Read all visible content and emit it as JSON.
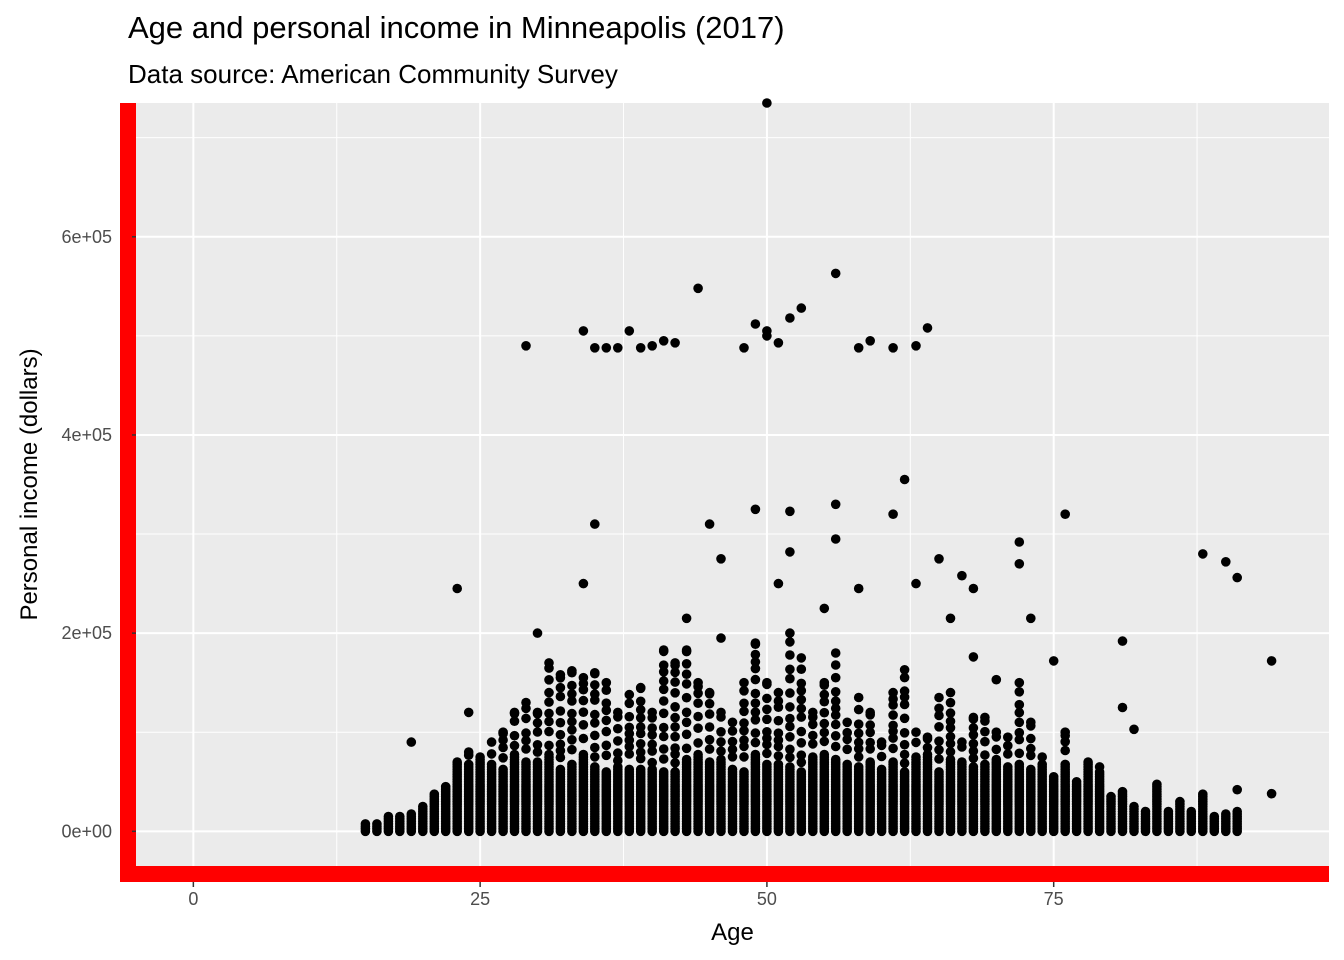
{
  "chart_data": {
    "type": "scatter",
    "title": "Age and personal income in Minneapolis (2017)",
    "subtitle": "Data source: American Community Survey",
    "xlabel": "Age",
    "ylabel": "Personal income (dollars)",
    "xlim": [
      -5,
      99
    ],
    "ylim": [
      -35000,
      735000
    ],
    "x_ticks": [
      0,
      25,
      50,
      75
    ],
    "x_tick_labels": [
      "0",
      "25",
      "50",
      "75"
    ],
    "y_ticks": [
      0,
      200000,
      400000,
      600000
    ],
    "y_tick_labels": [
      "0e+00",
      "2e+05",
      "4e+05",
      "6e+05"
    ],
    "grid": true,
    "panel_color": "#ebebeb",
    "grid_color": "#ffffff",
    "point_color": "#000000",
    "axis_line_color": "#ff0000",
    "outliers": [
      [
        19,
        90000
      ],
      [
        23,
        245000
      ],
      [
        24,
        120000
      ],
      [
        29,
        490000
      ],
      [
        30,
        200000
      ],
      [
        34,
        505000
      ],
      [
        34,
        250000
      ],
      [
        35,
        310000
      ],
      [
        35,
        488000
      ],
      [
        36,
        488000
      ],
      [
        37,
        488000
      ],
      [
        38,
        505000
      ],
      [
        39,
        488000
      ],
      [
        40,
        490000
      ],
      [
        41,
        495000
      ],
      [
        42,
        493000
      ],
      [
        43,
        215000
      ],
      [
        44,
        548000
      ],
      [
        45,
        310000
      ],
      [
        46,
        275000
      ],
      [
        46,
        195000
      ],
      [
        48,
        488000
      ],
      [
        49,
        512000
      ],
      [
        49,
        325000
      ],
      [
        50,
        735000
      ],
      [
        50,
        505000
      ],
      [
        50,
        500000
      ],
      [
        51,
        493000
      ],
      [
        51,
        250000
      ],
      [
        52,
        518000
      ],
      [
        52,
        323000
      ],
      [
        52,
        282000
      ],
      [
        53,
        528000
      ],
      [
        55,
        225000
      ],
      [
        56,
        563000
      ],
      [
        56,
        330000
      ],
      [
        56,
        295000
      ],
      [
        58,
        488000
      ],
      [
        58,
        245000
      ],
      [
        59,
        495000
      ],
      [
        61,
        488000
      ],
      [
        61,
        320000
      ],
      [
        62,
        355000
      ],
      [
        63,
        490000
      ],
      [
        63,
        250000
      ],
      [
        64,
        508000
      ],
      [
        65,
        275000
      ],
      [
        66,
        215000
      ],
      [
        67,
        258000
      ],
      [
        68,
        245000
      ],
      [
        68,
        176000
      ],
      [
        70,
        153000
      ],
      [
        72,
        292000
      ],
      [
        72,
        270000
      ],
      [
        73,
        215000
      ],
      [
        75,
        172000
      ],
      [
        76,
        320000
      ],
      [
        81,
        192000
      ],
      [
        81,
        125000
      ],
      [
        82,
        103000
      ],
      [
        88,
        280000
      ],
      [
        90,
        272000
      ],
      [
        91,
        256000
      ],
      [
        94,
        172000
      ],
      [
        94,
        38000
      ],
      [
        91,
        42000
      ]
    ],
    "density_by_age": [
      [
        15,
        8000
      ],
      [
        16,
        9000
      ],
      [
        17,
        17000
      ],
      [
        18,
        16000
      ],
      [
        19,
        18000
      ],
      [
        20,
        27000
      ],
      [
        21,
        38000
      ],
      [
        22,
        45000
      ],
      [
        23,
        70000
      ],
      [
        24,
        80000
      ],
      [
        25,
        75000
      ],
      [
        26,
        90000
      ],
      [
        27,
        100000
      ],
      [
        28,
        120000
      ],
      [
        29,
        130000
      ],
      [
        30,
        120000
      ],
      [
        31,
        170000
      ],
      [
        32,
        158000
      ],
      [
        33,
        162000
      ],
      [
        34,
        155000
      ],
      [
        35,
        160000
      ],
      [
        36,
        150000
      ],
      [
        37,
        120000
      ],
      [
        38,
        138000
      ],
      [
        39,
        145000
      ],
      [
        40,
        120000
      ],
      [
        41,
        183000
      ],
      [
        42,
        170000
      ],
      [
        43,
        183000
      ],
      [
        44,
        150000
      ],
      [
        45,
        140000
      ],
      [
        46,
        120000
      ],
      [
        47,
        110000
      ],
      [
        48,
        150000
      ],
      [
        49,
        190000
      ],
      [
        50,
        150000
      ],
      [
        51,
        140000
      ],
      [
        52,
        200000
      ],
      [
        53,
        175000
      ],
      [
        54,
        120000
      ],
      [
        55,
        150000
      ],
      [
        56,
        180000
      ],
      [
        57,
        110000
      ],
      [
        58,
        135000
      ],
      [
        59,
        120000
      ],
      [
        60,
        90000
      ],
      [
        61,
        140000
      ],
      [
        62,
        163000
      ],
      [
        63,
        100000
      ],
      [
        64,
        95000
      ],
      [
        65,
        135000
      ],
      [
        66,
        140000
      ],
      [
        67,
        90000
      ],
      [
        68,
        115000
      ],
      [
        69,
        115000
      ],
      [
        70,
        100000
      ],
      [
        71,
        95000
      ],
      [
        72,
        150000
      ],
      [
        73,
        110000
      ],
      [
        74,
        75000
      ],
      [
        75,
        55000
      ],
      [
        76,
        100000
      ],
      [
        77,
        50000
      ],
      [
        78,
        70000
      ],
      [
        79,
        65000
      ],
      [
        80,
        35000
      ],
      [
        81,
        40000
      ],
      [
        82,
        25000
      ],
      [
        83,
        22000
      ],
      [
        84,
        48000
      ],
      [
        85,
        20000
      ],
      [
        86,
        30000
      ],
      [
        87,
        20000
      ],
      [
        88,
        38000
      ],
      [
        89,
        15000
      ],
      [
        90,
        18000
      ],
      [
        91,
        20000
      ]
    ]
  }
}
